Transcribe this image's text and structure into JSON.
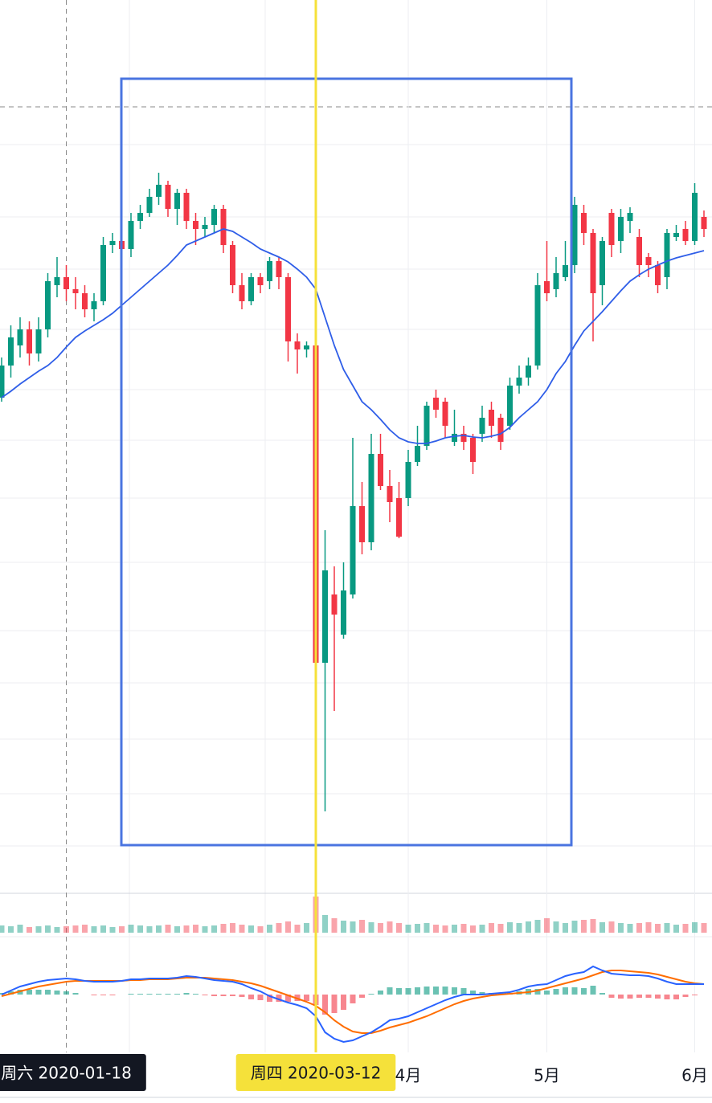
{
  "chart_data": {
    "type": "candlestick",
    "up_color": "#089981",
    "down_color": "#f23645",
    "ylim": [
      0,
      1110
    ],
    "open": [
      615,
      655,
      680,
      700,
      670,
      700,
      755,
      765,
      750,
      745,
      725,
      735,
      805,
      810,
      800,
      835,
      845,
      865,
      880,
      850,
      870,
      835,
      825,
      830,
      850,
      805,
      755,
      735,
      765,
      760,
      785,
      765,
      685,
      675,
      680,
      285,
      370,
      320,
      370,
      480,
      435,
      545,
      505,
      490,
      490,
      535,
      555,
      615,
      610,
      560,
      570,
      565,
      570,
      600,
      590,
      580,
      630,
      640,
      655,
      760,
      750,
      765,
      780,
      845,
      820,
      755,
      845,
      810,
      835,
      815,
      790,
      780,
      765,
      815,
      825,
      810,
      840
    ],
    "high": [
      665,
      705,
      715,
      710,
      715,
      770,
      790,
      780,
      765,
      755,
      745,
      815,
      820,
      820,
      845,
      855,
      875,
      895,
      885,
      875,
      875,
      845,
      840,
      855,
      855,
      810,
      770,
      770,
      770,
      790,
      790,
      770,
      695,
      685,
      680,
      450,
      405,
      410,
      565,
      510,
      570,
      570,
      525,
      510,
      550,
      580,
      610,
      625,
      615,
      600,
      580,
      570,
      605,
      610,
      595,
      640,
      655,
      665,
      770,
      810,
      790,
      810,
      865,
      855,
      825,
      815,
      850,
      850,
      852,
      825,
      795,
      785,
      825,
      830,
      835,
      882,
      848
    ],
    "low": [
      610,
      640,
      665,
      655,
      660,
      690,
      740,
      735,
      725,
      715,
      710,
      730,
      795,
      785,
      790,
      825,
      840,
      855,
      840,
      830,
      825,
      805,
      815,
      820,
      795,
      745,
      725,
      730,
      745,
      750,
      750,
      660,
      645,
      665,
      215,
      100,
      225,
      315,
      365,
      420,
      425,
      500,
      460,
      440,
      480,
      530,
      550,
      590,
      565,
      555,
      550,
      520,
      560,
      565,
      550,
      575,
      620,
      630,
      650,
      735,
      740,
      760,
      770,
      805,
      685,
      730,
      790,
      795,
      820,
      765,
      765,
      745,
      750,
      810,
      805,
      805,
      815
    ],
    "close": [
      655,
      690,
      700,
      670,
      700,
      760,
      765,
      750,
      745,
      725,
      735,
      805,
      810,
      800,
      835,
      845,
      865,
      880,
      850,
      870,
      835,
      825,
      830,
      850,
      805,
      755,
      735,
      765,
      755,
      785,
      765,
      685,
      675,
      680,
      285,
      400,
      345,
      375,
      480,
      435,
      545,
      505,
      485,
      442,
      535,
      555,
      605,
      600,
      580,
      570,
      560,
      535,
      590,
      580,
      560,
      630,
      640,
      655,
      755,
      745,
      770,
      780,
      855,
      820,
      745,
      810,
      805,
      840,
      845,
      780,
      780,
      755,
      820,
      820,
      810,
      870,
      825
    ],
    "ma": {
      "color": "#2f5ee8",
      "values": [
        615,
        623,
        632,
        640,
        648,
        655,
        665,
        678,
        690,
        698,
        705,
        712,
        720,
        730,
        740,
        750,
        760,
        770,
        780,
        792,
        805,
        810,
        815,
        820,
        825,
        822,
        815,
        808,
        800,
        795,
        790,
        784,
        775,
        765,
        750,
        715,
        680,
        650,
        630,
        610,
        600,
        588,
        575,
        565,
        560,
        558,
        558,
        561,
        565,
        567,
        568,
        566,
        565,
        567,
        570,
        578,
        590,
        600,
        610,
        625,
        645,
        660,
        680,
        698,
        710,
        722,
        735,
        748,
        760,
        768,
        775,
        780,
        785,
        789,
        792,
        795,
        798
      ]
    },
    "volume": {
      "ylim": [
        0,
        50
      ],
      "values": [
        9,
        8,
        10,
        7,
        8,
        9,
        7,
        8,
        9,
        10,
        8,
        9,
        7,
        8,
        10,
        9,
        8,
        9,
        10,
        8,
        9,
        10,
        8,
        9,
        11,
        12,
        10,
        9,
        8,
        10,
        12,
        14,
        10,
        12,
        45,
        22,
        18,
        15,
        14,
        16,
        13,
        12,
        14,
        12,
        10,
        11,
        12,
        10,
        9,
        10,
        11,
        9,
        10,
        12,
        11,
        13,
        12,
        14,
        16,
        18,
        14,
        12,
        15,
        16,
        17,
        13,
        14,
        12,
        11,
        12,
        13,
        11,
        12,
        10,
        11,
        13,
        12
      ]
    },
    "macd": {
      "ylim": [
        -72,
        72
      ],
      "macd_color": "#2962ff",
      "signal_color": "#ff6d00",
      "macd": [
        0,
        5,
        10,
        13,
        16,
        18,
        19,
        20,
        19,
        17,
        16,
        16,
        16,
        17,
        19,
        19,
        20,
        20,
        20,
        21,
        23,
        22,
        20,
        18,
        17,
        16,
        13,
        8,
        4,
        -2,
        -6,
        -10,
        -13,
        -17,
        -27,
        -47,
        -55,
        -59,
        -57,
        -52,
        -47,
        -40,
        -32,
        -30,
        -27,
        -22,
        -17,
        -12,
        -7,
        -3,
        0,
        0,
        0,
        1,
        2,
        3,
        6,
        10,
        12,
        13,
        18,
        23,
        26,
        28,
        35,
        30,
        26,
        25,
        24,
        24,
        23,
        20,
        16,
        13,
        13,
        13,
        13
      ],
      "signal": [
        -2,
        1,
        4,
        7,
        10,
        12,
        14,
        16,
        17,
        17,
        17,
        17,
        17,
        17,
        18,
        18,
        19,
        19,
        19,
        20,
        21,
        21,
        21,
        20,
        19,
        18,
        16,
        14,
        11,
        7,
        3,
        -1,
        -5,
        -9,
        -14,
        -22,
        -32,
        -40,
        -46,
        -48,
        -48,
        -45,
        -41,
        -38,
        -35,
        -31,
        -27,
        -22,
        -17,
        -12,
        -8,
        -5,
        -3,
        -1,
        0,
        1,
        2,
        3,
        5,
        8,
        11,
        14,
        17,
        20,
        24,
        28,
        30,
        30,
        29,
        28,
        27,
        25,
        22,
        19,
        16,
        14,
        13
      ],
      "histogram": [
        2,
        4,
        6,
        6,
        6,
        6,
        5,
        4,
        2,
        0,
        -1,
        -1,
        -1,
        0,
        1,
        1,
        1,
        1,
        1,
        1,
        2,
        1,
        -1,
        -2,
        -2,
        -2,
        -3,
        -6,
        -7,
        -9,
        -9,
        -9,
        -8,
        -8,
        -13,
        -25,
        -23,
        -19,
        -11,
        -4,
        1,
        5,
        9,
        8,
        8,
        9,
        10,
        10,
        10,
        9,
        8,
        5,
        3,
        2,
        2,
        2,
        4,
        7,
        7,
        5,
        7,
        9,
        9,
        8,
        11,
        2,
        -4,
        -5,
        -5,
        -4,
        -4,
        -5,
        -6,
        -6,
        -3,
        -1,
        0
      ]
    },
    "xticks": [
      {
        "value": 44,
        "label": "4月"
      },
      {
        "value": 59,
        "label": "5月"
      },
      {
        "value": 75,
        "label": "6月"
      }
    ],
    "marker": {
      "value": 7,
      "label": "周六 2020-01-18"
    },
    "crosshair": {
      "value": 34,
      "label": "周四 2020-03-12"
    }
  }
}
